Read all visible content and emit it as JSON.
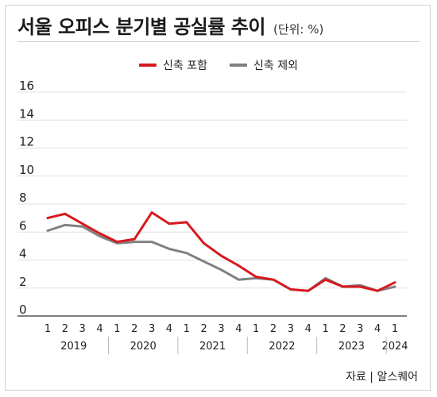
{
  "header": {
    "title": "서울 오피스 분기별 공실률 추이",
    "unit": "(단위: %)"
  },
  "footer": {
    "source": "자료 | 알스퀘어"
  },
  "colors": {
    "series_incl": "#d7191f",
    "series_excl": "#808080",
    "grid": "#e0e0e0"
  },
  "chart_data": {
    "type": "line",
    "title": "서울 오피스 분기별 공실률 추이",
    "ylabel": "",
    "xlabel": "",
    "ylim": [
      0,
      16
    ],
    "yticks": [
      0,
      2,
      4,
      6,
      8,
      10,
      12,
      14,
      16
    ],
    "grid": "horizontal",
    "legend": "top-center",
    "categories": [
      "1",
      "2",
      "3",
      "4",
      "1",
      "2",
      "3",
      "4",
      "1",
      "2",
      "3",
      "4",
      "1",
      "2",
      "3",
      "4",
      "1",
      "2",
      "3",
      "4",
      "1"
    ],
    "years": [
      {
        "label": "2019",
        "count": 4
      },
      {
        "label": "2020",
        "count": 4
      },
      {
        "label": "2021",
        "count": 4
      },
      {
        "label": "2022",
        "count": 4
      },
      {
        "label": "2023",
        "count": 4
      },
      {
        "label": "2024",
        "count": 1
      }
    ],
    "series": [
      {
        "name": "신축 포함",
        "values": [
          7.0,
          7.3,
          6.6,
          5.9,
          5.3,
          5.5,
          7.4,
          6.6,
          6.7,
          5.2,
          4.3,
          3.6,
          2.8,
          2.6,
          1.9,
          1.8,
          2.6,
          2.1,
          2.1,
          1.8,
          2.4
        ]
      },
      {
        "name": "신축 제외",
        "values": [
          6.1,
          6.5,
          6.4,
          5.7,
          5.2,
          5.3,
          5.3,
          4.8,
          4.5,
          3.9,
          3.3,
          2.6,
          2.7,
          2.6,
          1.9,
          1.8,
          2.7,
          2.1,
          2.2,
          1.8,
          2.1
        ]
      }
    ]
  }
}
